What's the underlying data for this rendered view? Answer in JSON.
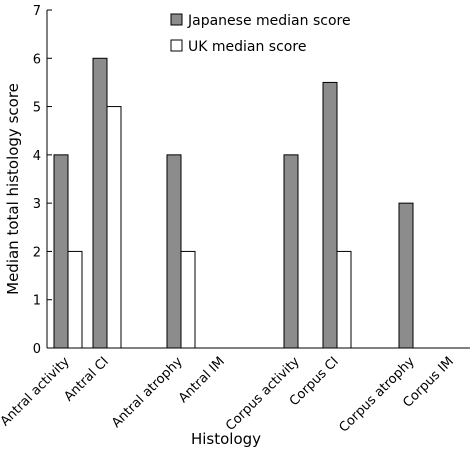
{
  "chart_data": {
    "type": "bar",
    "categories": [
      "Antral activity",
      "Antral CI",
      "Antral atrophy",
      "Antral IM",
      "Corpus activity",
      "Corpus CI",
      "Corpus atrophy",
      "Corpus IM"
    ],
    "series": [
      {
        "name": "Japanese median score",
        "values": [
          4,
          6,
          4,
          null,
          4,
          5.5,
          3,
          null
        ],
        "color": "#8c8c8c"
      },
      {
        "name": "UK median score",
        "values": [
          2,
          5,
          2,
          null,
          null,
          2,
          null,
          null
        ],
        "color": "#ffffff"
      }
    ],
    "xlabel": "Histology",
    "ylabel": "Median total histology score",
    "ylim": [
      0,
      7
    ],
    "yticks": [
      0,
      1,
      2,
      3,
      4,
      5,
      6,
      7
    ],
    "grid": false,
    "legend_position": "top-center"
  }
}
